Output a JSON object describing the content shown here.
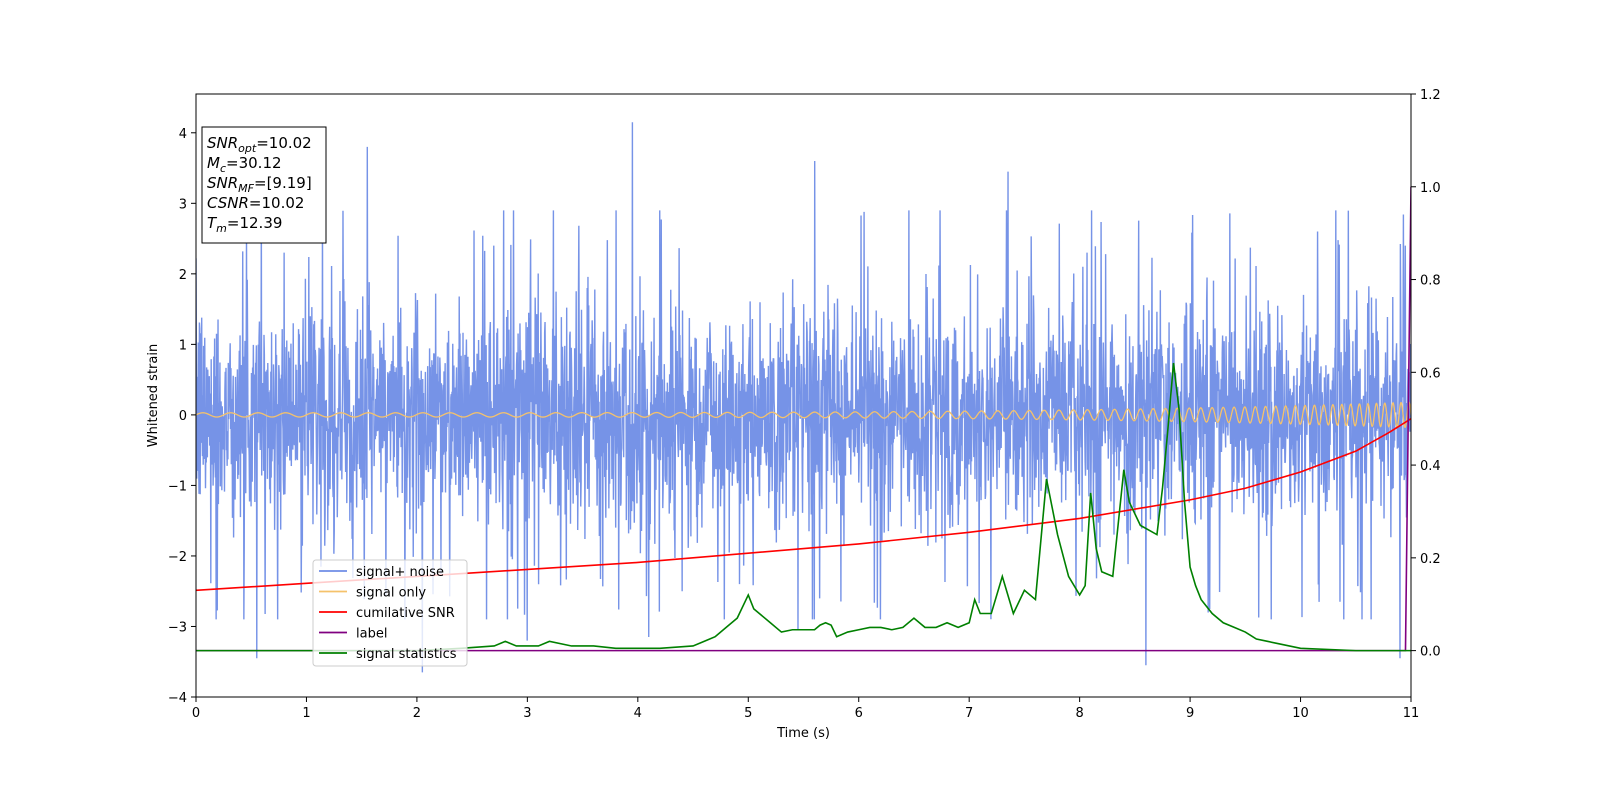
{
  "chart_data": {
    "type": "line",
    "xlabel": "Time (s)",
    "ylabel": "Whitened strain",
    "xlim": [
      0,
      11
    ],
    "ylim_left": [
      -4,
      4.55
    ],
    "ylim_right": [
      -0.1,
      1.2
    ],
    "xticks": [
      "0",
      "1",
      "2",
      "3",
      "4",
      "5",
      "6",
      "7",
      "8",
      "9",
      "10",
      "11"
    ],
    "yticks_left": [
      "−4",
      "−3",
      "−2",
      "−1",
      "0",
      "1",
      "2",
      "3",
      "4"
    ],
    "yticks_right": [
      "0.0",
      "0.2",
      "0.4",
      "0.6",
      "0.8",
      "1.0",
      "1.2"
    ],
    "info_box": {
      "lines": [
        {
          "sym": "SNR",
          "sub": "opt",
          "val": "=10.02"
        },
        {
          "sym": "M",
          "sub": "c",
          "val": "=30.12"
        },
        {
          "sym": "SNR",
          "sub": "MF",
          "val": "=[9.19]"
        },
        {
          "sym": "CSNR",
          "sub": "",
          "val": "=10.02"
        },
        {
          "sym": "T",
          "sub": "m",
          "val": "=12.39"
        }
      ]
    },
    "legend": {
      "placement": "lower-left",
      "entries": [
        {
          "name": "signal+ noise",
          "color": "#6f8de6"
        },
        {
          "name": "signal only",
          "color": "#f5c26b"
        },
        {
          "name": "cumilative SNR",
          "color": "#ff0000"
        },
        {
          "name": "label",
          "color": "#800080"
        },
        {
          "name": "signal statistics",
          "color": "#008000"
        }
      ]
    },
    "series": [
      {
        "name": "signal+ noise",
        "axis": "left",
        "color": "#6f8de6",
        "envelope_typical": [
          -1.6,
          1.6
        ],
        "spikes": [
          [
            0.55,
            -3.45
          ],
          [
            1.55,
            3.8
          ],
          [
            2.05,
            -3.65
          ],
          [
            3.0,
            -3.2
          ],
          [
            3.95,
            4.15
          ],
          [
            4.1,
            -3.15
          ],
          [
            5.45,
            -3.05
          ],
          [
            5.6,
            3.6
          ],
          [
            7.35,
            3.45
          ],
          [
            8.6,
            -3.55
          ],
          [
            10.9,
            -3.45
          ],
          [
            10.95,
            2.4
          ]
        ]
      },
      {
        "name": "signal only",
        "axis": "left",
        "color": "#f5c26b",
        "chirp": {
          "f0_hz": 4.0,
          "f1_hz": 14.0,
          "amp_start": 0.03,
          "amp_end": 0.18
        }
      },
      {
        "name": "cumilative SNR",
        "axis": "right",
        "x": [
          0,
          1,
          2,
          3,
          4,
          5,
          6,
          7,
          8,
          9,
          9.5,
          10,
          10.5,
          10.8,
          11
        ],
        "values": [
          0.13,
          0.145,
          0.16,
          0.175,
          0.19,
          0.21,
          0.23,
          0.255,
          0.285,
          0.325,
          0.35,
          0.385,
          0.43,
          0.47,
          0.5
        ]
      },
      {
        "name": "label",
        "axis": "right",
        "x": [
          0,
          10.95,
          11.0
        ],
        "values": [
          0.0,
          0.0,
          1.0
        ]
      },
      {
        "name": "signal statistics",
        "axis": "right",
        "x": [
          0,
          1,
          2,
          2.4,
          2.7,
          2.8,
          2.9,
          3.1,
          3.2,
          3.4,
          3.6,
          3.8,
          4.0,
          4.2,
          4.5,
          4.6,
          4.7,
          4.8,
          4.9,
          5.0,
          5.05,
          5.1,
          5.2,
          5.3,
          5.4,
          5.5,
          5.6,
          5.65,
          5.7,
          5.75,
          5.8,
          5.9,
          6.0,
          6.1,
          6.2,
          6.3,
          6.4,
          6.5,
          6.6,
          6.7,
          6.8,
          6.9,
          7.0,
          7.05,
          7.1,
          7.2,
          7.3,
          7.4,
          7.5,
          7.6,
          7.7,
          7.8,
          7.9,
          8.0,
          8.05,
          8.1,
          8.15,
          8.2,
          8.3,
          8.4,
          8.45,
          8.55,
          8.7,
          8.75,
          8.8,
          8.85,
          8.9,
          8.95,
          9.0,
          9.05,
          9.1,
          9.2,
          9.3,
          9.4,
          9.5,
          9.6,
          9.7,
          9.8,
          10.0,
          10.5,
          10.9,
          11.0
        ],
        "values": [
          0.0,
          0.0,
          0.0,
          0.005,
          0.01,
          0.02,
          0.01,
          0.01,
          0.02,
          0.01,
          0.01,
          0.005,
          0.005,
          0.005,
          0.01,
          0.02,
          0.03,
          0.05,
          0.07,
          0.12,
          0.09,
          0.08,
          0.06,
          0.04,
          0.045,
          0.045,
          0.045,
          0.055,
          0.06,
          0.055,
          0.03,
          0.04,
          0.045,
          0.05,
          0.05,
          0.045,
          0.05,
          0.07,
          0.05,
          0.05,
          0.06,
          0.05,
          0.06,
          0.11,
          0.08,
          0.08,
          0.16,
          0.08,
          0.13,
          0.11,
          0.37,
          0.25,
          0.16,
          0.12,
          0.14,
          0.34,
          0.22,
          0.17,
          0.16,
          0.39,
          0.32,
          0.27,
          0.25,
          0.35,
          0.48,
          0.62,
          0.52,
          0.32,
          0.18,
          0.14,
          0.11,
          0.08,
          0.06,
          0.05,
          0.04,
          0.025,
          0.02,
          0.015,
          0.005,
          0.0,
          0.0,
          0.0
        ]
      }
    ]
  }
}
